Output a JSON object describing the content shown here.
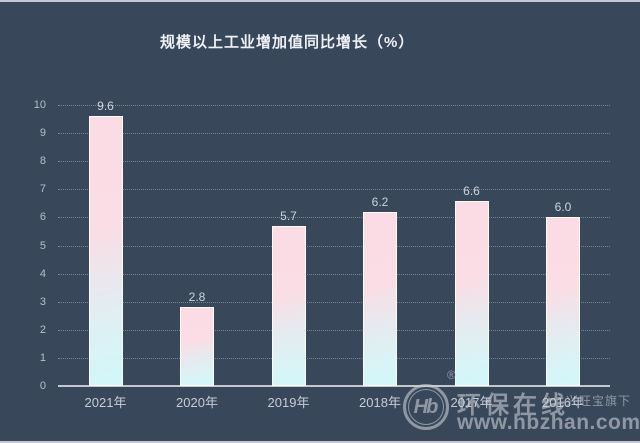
{
  "page": {
    "background": "#38475a",
    "edge_color": "#c4c7cd"
  },
  "chart_data": {
    "type": "bar",
    "title": "规模以上工业增加值同比增长（%）",
    "categories": [
      "2021年",
      "2020年",
      "2019年",
      "2018年",
      "2017年",
      "2016年"
    ],
    "values": [
      9.6,
      2.8,
      5.7,
      6.2,
      6.6,
      6.0
    ],
    "value_labels": [
      "9.6",
      "2.8",
      "5.7",
      "6.2",
      "6.6",
      "6.0"
    ],
    "xlabel": "",
    "ylabel": "",
    "ylim": [
      0,
      10
    ],
    "ytick_step": 1,
    "yticks": [
      "0",
      "1",
      "2",
      "3",
      "4",
      "5",
      "6",
      "7",
      "8",
      "9",
      "10"
    ],
    "grid": "horizontal-dotted",
    "legend_position": "none",
    "bar_color_top": "#fcdce4",
    "bar_color_bottom": "#d0f7fa",
    "bar_border_color": "#ffffff",
    "text_color": "#c6ccd5",
    "title_color": "#eef1f5"
  },
  "watermark": {
    "logo_monogram": "Hb",
    "registered_mark": "®",
    "brand_name": "环保在线",
    "affiliation": "兴旺宝旗下",
    "site_url": "www.hbzhan.com"
  }
}
